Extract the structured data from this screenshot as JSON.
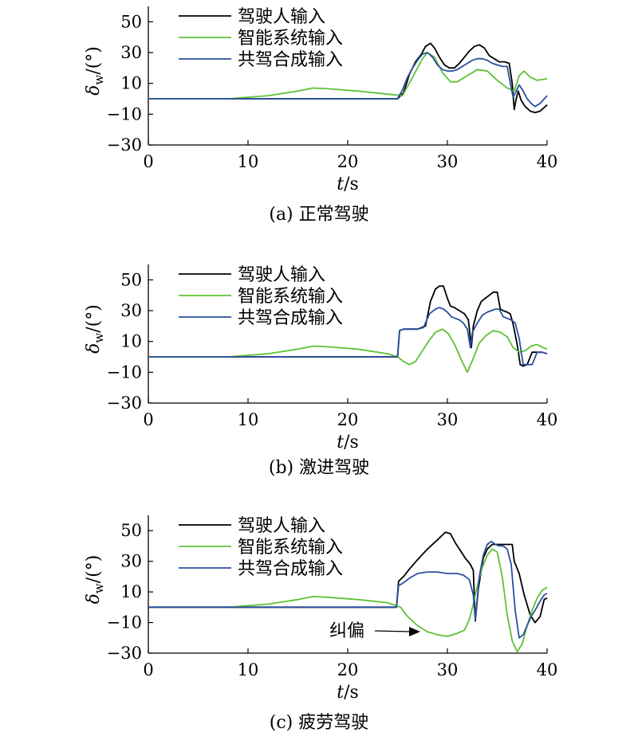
{
  "colors": {
    "driver": "#000000",
    "intelligent": "#5ec234",
    "shared": "#2b4fa0"
  },
  "chart_data": [
    {
      "type": "line",
      "caption": "(a) 正常驾驶",
      "xlabel": "t/s",
      "ylabel": "δw/(°)",
      "xlim": [
        0,
        40
      ],
      "ylim": [
        -30,
        60
      ],
      "xticks": [
        0,
        10,
        20,
        30,
        40
      ],
      "yticks": [
        50,
        30,
        10,
        -10,
        -30
      ],
      "legend": [
        "驾驶人输入",
        "智能系统输入",
        "共驾合成输入"
      ],
      "series": [
        {
          "name": "驾驶人输入",
          "x": [
            0,
            25,
            25.6,
            26.2,
            26.8,
            27.4,
            27.8,
            28.3,
            28.7,
            29.2,
            29.7,
            30.2,
            30.7,
            31.2,
            31.7,
            32.2,
            32.7,
            33.2,
            33.7,
            34.2,
            34.7,
            35.2,
            35.7,
            36.2,
            36.5,
            36.7,
            36.9,
            37.1,
            37.4,
            37.8,
            38.3,
            38.8,
            39.3,
            40
          ],
          "y": [
            0,
            0,
            4,
            16,
            24,
            29,
            34,
            36,
            33,
            27,
            22,
            20,
            20,
            23,
            27,
            31,
            34,
            35,
            33,
            28,
            26,
            24,
            24,
            23,
            10,
            -7,
            0,
            5,
            -1,
            -5,
            -8,
            -9,
            -8,
            -4
          ]
        },
        {
          "name": "智能系统输入",
          "x": [
            0,
            4,
            8,
            12,
            15,
            16.5,
            18,
            21,
            24,
            25.5,
            26.5,
            27.5,
            28,
            28.7,
            29.5,
            30.3,
            31,
            32,
            33,
            34,
            35,
            36,
            36.7,
            37.2,
            37.7,
            38.3,
            39,
            40
          ],
          "y": [
            0,
            0,
            0,
            2,
            5,
            7,
            6.5,
            5,
            3,
            2,
            14,
            26,
            30,
            27,
            17,
            11,
            11,
            15,
            19,
            18,
            12,
            7,
            5,
            15,
            18,
            14,
            12,
            13
          ]
        },
        {
          "name": "共驾合成输入",
          "x": [
            0,
            25,
            25.5,
            26,
            26.5,
            27,
            27.5,
            28,
            28.5,
            29,
            29.5,
            30,
            30.5,
            31,
            31.5,
            32,
            32.5,
            33,
            33.5,
            34,
            34.5,
            35,
            35.5,
            36,
            36.4,
            36.6,
            36.9,
            37.2,
            37.6,
            38,
            38.4,
            38.8,
            39.3,
            40
          ],
          "y": [
            0,
            0,
            6,
            14,
            20,
            25,
            29,
            30,
            27,
            22,
            19,
            18,
            18,
            19,
            21,
            23,
            25,
            26,
            26,
            25,
            23,
            22,
            21,
            21,
            7,
            1,
            5,
            9,
            5,
            0,
            -3,
            -5,
            -3,
            2
          ]
        }
      ]
    },
    {
      "type": "line",
      "caption": "(b) 激进驾驶",
      "xlabel": "t/s",
      "ylabel": "δw/(°)",
      "xlim": [
        0,
        40
      ],
      "ylim": [
        -30,
        60
      ],
      "xticks": [
        0,
        10,
        20,
        30,
        40
      ],
      "yticks": [
        50,
        30,
        10,
        -10,
        -30
      ],
      "legend": [
        "驾驶人输入",
        "智能系统输入",
        "共驾合成输入"
      ],
      "series": [
        {
          "name": "驾驶人输入",
          "x": [
            0,
            25,
            25.2,
            25.6,
            26.2,
            27,
            27.8,
            28.3,
            28.8,
            29.2,
            29.6,
            30,
            30.3,
            30.7,
            31.2,
            31.7,
            32.1,
            32.4,
            32.6,
            33,
            33.4,
            33.8,
            34.2,
            34.6,
            35,
            35.3,
            35.6,
            36,
            36.3,
            36.6,
            37,
            37.3,
            37.6,
            38,
            38.5,
            39,
            39.5,
            40
          ],
          "y": [
            0,
            0,
            17,
            18,
            18,
            18,
            20,
            36,
            44,
            46,
            46,
            38,
            33,
            32,
            30,
            28,
            24,
            6,
            20,
            30,
            36,
            38,
            40,
            42,
            42,
            31,
            30,
            29,
            28,
            21,
            8,
            -5,
            -6,
            -5,
            3,
            3,
            3,
            2
          ]
        },
        {
          "name": "智能系统输入",
          "x": [
            0,
            4,
            8,
            12,
            15,
            16.5,
            18,
            21,
            24,
            25,
            25.6,
            26.2,
            26.8,
            27.4,
            28.1,
            28.8,
            29.5,
            30.1,
            30.8,
            31.4,
            32,
            32.6,
            33.2,
            33.9,
            34.6,
            35.3,
            36,
            36.6,
            37.2,
            37.8,
            38.4,
            39,
            39.6,
            40
          ],
          "y": [
            0,
            0,
            0,
            2,
            5,
            7,
            6.5,
            5,
            2,
            0,
            -3,
            -5,
            -3,
            3,
            10,
            16,
            18,
            15,
            7,
            -2,
            -10,
            -1,
            9,
            14,
            17,
            16,
            13,
            6,
            3,
            4,
            7,
            8,
            6,
            5
          ]
        },
        {
          "name": "共驾合成输入",
          "x": [
            0,
            25,
            25.2,
            25.6,
            26.2,
            27,
            27.6,
            28.2,
            28.8,
            29.2,
            29.6,
            30,
            30.4,
            30.8,
            31.2,
            31.6,
            32,
            32.3,
            32.5,
            33,
            33.5,
            34,
            34.4,
            34.8,
            35.2,
            35.6,
            36,
            36.4,
            36.8,
            37.2,
            37.6,
            38,
            38.5,
            39,
            39.5,
            40
          ],
          "y": [
            0,
            0,
            17,
            18,
            18,
            18,
            19,
            28,
            31,
            32,
            31,
            29,
            26,
            25,
            24,
            22,
            18,
            6,
            16,
            22,
            27,
            29,
            30,
            31,
            31,
            26,
            25,
            24,
            22,
            12,
            -5,
            -5,
            -5,
            3,
            3,
            2
          ]
        }
      ]
    },
    {
      "type": "line",
      "caption": "(c) 疲劳驾驶",
      "xlabel": "t/s",
      "ylabel": "δw/(°)",
      "xlim": [
        0,
        40
      ],
      "ylim": [
        -30,
        60
      ],
      "xticks": [
        0,
        10,
        20,
        30,
        40
      ],
      "yticks": [
        50,
        30,
        10,
        -10,
        -30
      ],
      "legend": [
        "驾驶人输入",
        "智能系统输入",
        "共驾合成输入"
      ],
      "annotation": {
        "text": "纠偏",
        "x": 27,
        "y": -17
      },
      "series": [
        {
          "name": "驾驶人输入",
          "x": [
            0,
            24.9,
            25.1,
            25.6,
            26.2,
            27,
            28,
            29,
            29.8,
            30.3,
            30.8,
            31.3,
            31.8,
            32.3,
            32.6,
            32.8,
            33.1,
            33.6,
            34,
            34.5,
            35,
            35.5,
            36.2,
            36.5,
            36.7,
            37.2,
            37.7,
            38.3,
            38.8,
            39.3,
            39.7,
            40
          ],
          "y": [
            0,
            0,
            17,
            20,
            25,
            31,
            38,
            44,
            49,
            48,
            42,
            37,
            32,
            28,
            24,
            -9,
            12,
            32,
            38,
            41,
            41,
            41,
            41,
            41,
            30,
            22,
            8,
            -5,
            -10,
            -6,
            5,
            6
          ]
        },
        {
          "name": "智能系统输入",
          "x": [
            0,
            4,
            8,
            12,
            15,
            16.5,
            18,
            21,
            24,
            25.3,
            26,
            27,
            28,
            29,
            30,
            31,
            31.7,
            32.2,
            32.6,
            33,
            33.5,
            34,
            34.5,
            35,
            35.5,
            36,
            36.5,
            37,
            37.5,
            38,
            38.5,
            39,
            39.5,
            40
          ],
          "y": [
            0,
            0,
            0,
            2,
            5,
            7,
            6.5,
            5,
            3,
            0,
            -6,
            -12,
            -16,
            -18,
            -19,
            -17,
            -15,
            -8,
            2,
            14,
            26,
            34,
            38,
            36,
            20,
            -5,
            -22,
            -29,
            -24,
            -12,
            -2,
            6,
            11,
            13
          ]
        },
        {
          "name": "共驾合成输入",
          "x": [
            0,
            24.9,
            25.1,
            25.6,
            26.2,
            27,
            28,
            29,
            30,
            31,
            31.6,
            32.2,
            32.6,
            32.8,
            33.2,
            33.6,
            34,
            34.4,
            34.8,
            35.2,
            35.6,
            36,
            36.4,
            36.8,
            37.2,
            37.6,
            38,
            38.4,
            38.8,
            39.3,
            39.7,
            40
          ],
          "y": [
            0,
            0,
            14,
            16,
            19,
            22,
            23,
            23,
            22,
            22,
            21,
            18,
            8,
            -8,
            20,
            34,
            41,
            43,
            41,
            40,
            40,
            38,
            28,
            -2,
            -20,
            -18,
            -12,
            -6,
            -2,
            4,
            8,
            9
          ]
        }
      ]
    }
  ]
}
